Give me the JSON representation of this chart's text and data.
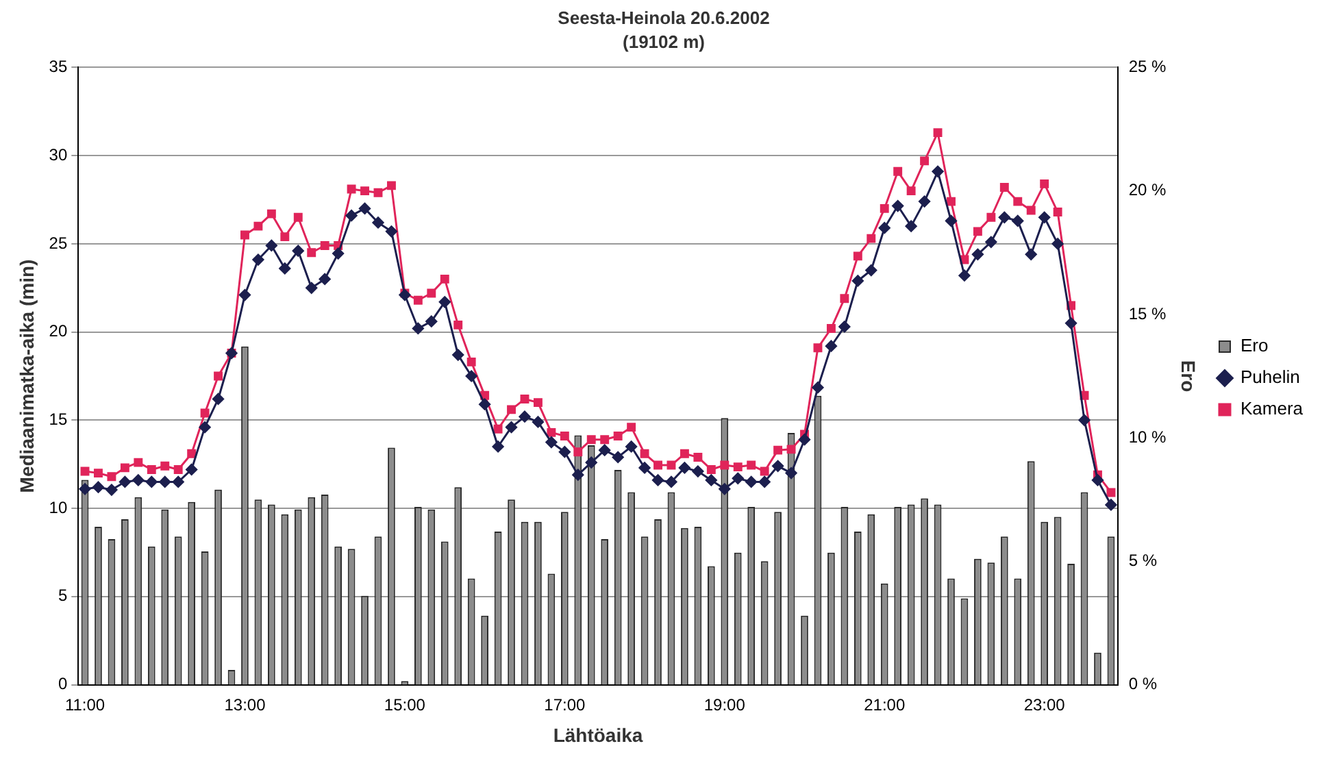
{
  "chart_data": {
    "type": "bar",
    "title": "Seesta-Heinola 20.6.2002",
    "subtitle": "(19102 m)",
    "xlabel": "Lähtöaika",
    "ylabel": "Mediaanimatka-aika (min)",
    "y2label": "Ero",
    "categories": [
      "11:00",
      null,
      null,
      null,
      null,
      null,
      null,
      null,
      null,
      null,
      null,
      null,
      "13:00",
      null,
      null,
      null,
      null,
      null,
      null,
      null,
      null,
      null,
      null,
      null,
      "15:00",
      null,
      null,
      null,
      null,
      null,
      null,
      null,
      null,
      null,
      null,
      null,
      "17:00",
      null,
      null,
      null,
      null,
      null,
      null,
      null,
      null,
      null,
      null,
      null,
      "19:00",
      null,
      null,
      null,
      null,
      null,
      null,
      null,
      null,
      null,
      null,
      null,
      "21:00",
      null,
      null,
      null,
      null,
      null,
      null,
      null,
      null,
      null,
      null,
      null,
      "23:00",
      null,
      null,
      null,
      null,
      null
    ],
    "series": [
      {
        "name": "Ero",
        "axis": "y2",
        "color": "#8c8c8c",
        "values": [
          8.3,
          6.4,
          5.9,
          6.7,
          7.6,
          5.6,
          7.1,
          6.0,
          7.4,
          5.4,
          7.9,
          0.6,
          13.7,
          7.5,
          7.3,
          6.9,
          7.1,
          7.6,
          7.7,
          5.6,
          5.5,
          3.6,
          6.0,
          9.6,
          0.15,
          7.2,
          7.1,
          5.8,
          8.0,
          4.3,
          2.8,
          6.2,
          7.5,
          6.6,
          6.6,
          4.5,
          7.0,
          10.1,
          9.7,
          5.9,
          8.7,
          7.8,
          6.0,
          6.7,
          7.8,
          6.35,
          6.4,
          4.8,
          10.8,
          5.35,
          7.2,
          5.0,
          7.0,
          10.2,
          2.8,
          11.7,
          5.35,
          7.2,
          6.2,
          6.9,
          4.1,
          7.2,
          7.3,
          7.55,
          7.3,
          4.3,
          3.5,
          5.1,
          4.95,
          6.0,
          4.3,
          9.05,
          6.6,
          6.8,
          4.9,
          7.8,
          1.3,
          6.0
        ]
      },
      {
        "name": "Puhelin",
        "type": "line",
        "marker": "diamond",
        "color": "#1c1f4e",
        "values": [
          11.1,
          11.2,
          11.05,
          11.5,
          11.6,
          11.5,
          11.5,
          11.5,
          12.2,
          14.6,
          16.2,
          18.8,
          22.1,
          24.1,
          24.9,
          23.6,
          24.6,
          22.5,
          23.0,
          24.45,
          26.6,
          27.0,
          26.2,
          25.7,
          22.1,
          20.2,
          20.6,
          21.7,
          18.7,
          17.5,
          15.9,
          13.5,
          14.6,
          15.2,
          14.9,
          13.75,
          13.2,
          11.9,
          12.6,
          13.3,
          12.9,
          13.5,
          12.3,
          11.6,
          11.5,
          12.3,
          12.1,
          11.6,
          11.1,
          11.7,
          11.5,
          11.5,
          12.4,
          12.0,
          13.9,
          16.85,
          19.2,
          20.3,
          22.9,
          23.5,
          25.9,
          27.15,
          26.0,
          27.4,
          29.1,
          26.3,
          23.2,
          24.4,
          25.1,
          26.5,
          26.3,
          24.4,
          26.5,
          25.0,
          20.5,
          15.0,
          11.6,
          10.2
        ]
      },
      {
        "name": "Kamera",
        "type": "line",
        "marker": "square",
        "color": "#e0245a",
        "values": [
          12.1,
          12.0,
          11.8,
          12.3,
          12.6,
          12.2,
          12.4,
          12.2,
          13.1,
          15.4,
          17.5,
          18.8,
          25.5,
          26.0,
          26.7,
          25.4,
          26.5,
          24.5,
          24.9,
          24.9,
          28.1,
          28.0,
          27.9,
          28.3,
          22.2,
          21.8,
          22.2,
          23.0,
          20.4,
          18.3,
          16.4,
          14.5,
          15.6,
          16.2,
          16.0,
          14.3,
          14.1,
          13.2,
          13.9,
          13.9,
          14.1,
          14.6,
          13.1,
          12.45,
          12.45,
          13.1,
          12.9,
          12.2,
          12.45,
          12.35,
          12.45,
          12.1,
          13.3,
          13.35,
          14.2,
          19.1,
          20.2,
          21.9,
          24.3,
          25.3,
          27.0,
          29.1,
          28.0,
          29.7,
          31.3,
          27.4,
          24.1,
          25.7,
          26.5,
          28.2,
          27.4,
          26.9,
          28.4,
          26.8,
          21.5,
          16.4,
          11.9,
          10.9
        ]
      }
    ],
    "ylim": [
      0,
      35
    ],
    "yticks": [
      0,
      5,
      10,
      15,
      20,
      25,
      30,
      35
    ],
    "y2lim": [
      0,
      25
    ],
    "y2ticks": [
      {
        "value": 0,
        "label": "0 %"
      },
      {
        "value": 5,
        "label": "5 %"
      },
      {
        "value": 10,
        "label": "10 %"
      },
      {
        "value": 15,
        "label": "15 %"
      },
      {
        "value": 20,
        "label": "20 %"
      },
      {
        "value": 25,
        "label": "25 %"
      }
    ],
    "grid": "y",
    "legend": "right"
  }
}
